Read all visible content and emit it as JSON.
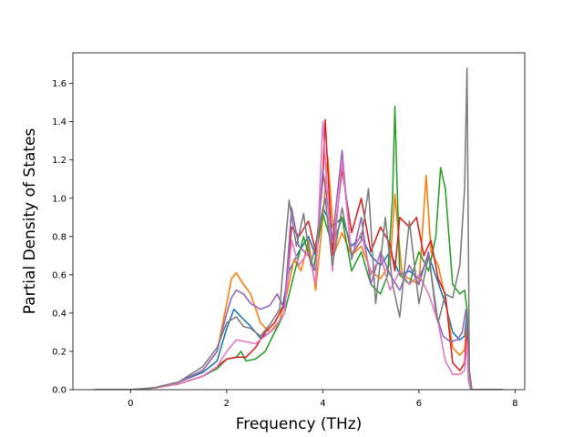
{
  "chart_data": {
    "type": "line",
    "xlabel": "Frequency (THz)",
    "ylabel": "Partial Density of States",
    "xlim": [
      -1.2,
      8.2
    ],
    "ylim": [
      0.0,
      1.76
    ],
    "xticks": [
      0,
      2,
      4,
      6,
      8
    ],
    "yticks": [
      0.0,
      0.2,
      0.4,
      0.6,
      0.8,
      1.0,
      1.2,
      1.4,
      1.6
    ],
    "ytick_labels": [
      "0.0",
      "0.2",
      "0.4",
      "0.6",
      "0.8",
      "1.0",
      "1.2",
      "1.4",
      "1.6"
    ],
    "grid": false,
    "legend": "none",
    "series": [
      {
        "color": "#1f77b4",
        "x": [
          -0.75,
          0.0,
          0.5,
          1.0,
          1.5,
          1.8,
          2.0,
          2.15,
          2.3,
          2.5,
          2.7,
          2.9,
          3.1,
          3.3,
          3.5,
          3.7,
          3.85,
          4.0,
          4.2,
          4.4,
          4.6,
          4.8,
          5.0,
          5.2,
          5.4,
          5.6,
          5.8,
          6.0,
          6.2,
          6.4,
          6.55,
          6.7,
          6.85,
          6.95,
          7.0,
          7.05,
          7.1,
          7.75
        ],
        "y": [
          0.0,
          0.0,
          0.01,
          0.04,
          0.09,
          0.15,
          0.32,
          0.42,
          0.38,
          0.33,
          0.27,
          0.3,
          0.35,
          0.62,
          0.72,
          0.8,
          0.7,
          0.95,
          0.85,
          0.9,
          0.75,
          0.8,
          0.7,
          0.65,
          0.72,
          0.6,
          0.62,
          0.58,
          0.7,
          0.56,
          0.45,
          0.3,
          0.26,
          0.28,
          0.4,
          0.05,
          0.0,
          0.0
        ]
      },
      {
        "color": "#ff7f0e",
        "x": [
          -0.75,
          0.0,
          0.5,
          1.0,
          1.5,
          1.8,
          2.0,
          2.1,
          2.2,
          2.35,
          2.5,
          2.7,
          2.9,
          3.1,
          3.25,
          3.4,
          3.55,
          3.7,
          3.85,
          4.0,
          4.1,
          4.25,
          4.4,
          4.6,
          4.8,
          5.0,
          5.2,
          5.4,
          5.5,
          5.65,
          5.8,
          6.0,
          6.15,
          6.25,
          6.4,
          6.55,
          6.7,
          6.85,
          6.95,
          7.0,
          7.05,
          7.1,
          7.75
        ],
        "y": [
          0.0,
          0.0,
          0.01,
          0.04,
          0.1,
          0.2,
          0.45,
          0.58,
          0.61,
          0.55,
          0.5,
          0.35,
          0.3,
          0.36,
          0.5,
          0.68,
          0.62,
          0.78,
          0.52,
          0.9,
          1.22,
          0.72,
          0.82,
          0.7,
          0.75,
          0.62,
          0.58,
          0.66,
          1.02,
          0.6,
          0.58,
          0.55,
          1.12,
          0.72,
          0.65,
          0.48,
          0.22,
          0.18,
          0.21,
          0.36,
          0.05,
          0.0,
          0.0
        ]
      },
      {
        "color": "#2ca02c",
        "x": [
          -0.75,
          0.0,
          0.5,
          1.0,
          1.5,
          1.8,
          2.0,
          2.2,
          2.3,
          2.4,
          2.6,
          2.8,
          3.0,
          3.2,
          3.4,
          3.6,
          3.8,
          4.0,
          4.2,
          4.4,
          4.6,
          4.8,
          5.0,
          5.2,
          5.35,
          5.45,
          5.5,
          5.6,
          5.8,
          6.0,
          6.2,
          6.35,
          6.45,
          6.55,
          6.7,
          6.85,
          6.95,
          7.0,
          7.05,
          7.1,
          7.75
        ],
        "y": [
          0.0,
          0.0,
          0.01,
          0.03,
          0.07,
          0.11,
          0.16,
          0.17,
          0.2,
          0.15,
          0.16,
          0.2,
          0.3,
          0.4,
          0.6,
          0.8,
          0.62,
          0.92,
          0.75,
          0.9,
          0.62,
          0.72,
          0.55,
          0.5,
          0.6,
          1.0,
          1.48,
          0.6,
          0.55,
          0.72,
          0.62,
          0.8,
          1.16,
          1.05,
          0.55,
          0.5,
          0.52,
          0.42,
          0.05,
          0.0,
          0.0
        ]
      },
      {
        "color": "#d62728",
        "x": [
          -0.75,
          0.0,
          0.5,
          1.0,
          1.5,
          1.8,
          2.0,
          2.2,
          2.4,
          2.6,
          2.8,
          3.0,
          3.2,
          3.35,
          3.5,
          3.7,
          3.85,
          4.0,
          4.05,
          4.2,
          4.4,
          4.6,
          4.8,
          5.0,
          5.2,
          5.4,
          5.5,
          5.6,
          5.8,
          5.95,
          6.1,
          6.25,
          6.4,
          6.55,
          6.7,
          6.85,
          6.95,
          7.0,
          7.05,
          7.1,
          7.75
        ],
        "y": [
          0.0,
          0.0,
          0.01,
          0.03,
          0.07,
          0.12,
          0.16,
          0.17,
          0.17,
          0.22,
          0.3,
          0.35,
          0.45,
          0.85,
          0.8,
          0.88,
          0.72,
          1.1,
          1.41,
          0.7,
          1.15,
          0.82,
          1.0,
          0.72,
          0.85,
          0.76,
          0.62,
          0.9,
          0.85,
          0.9,
          0.7,
          0.78,
          0.58,
          0.5,
          0.14,
          0.1,
          0.14,
          0.32,
          0.05,
          0.0,
          0.0
        ]
      },
      {
        "color": "#9467bd",
        "x": [
          -0.75,
          0.0,
          0.5,
          1.0,
          1.5,
          1.8,
          2.0,
          2.1,
          2.2,
          2.35,
          2.5,
          2.7,
          2.9,
          3.05,
          3.2,
          3.35,
          3.5,
          3.7,
          3.85,
          4.0,
          4.2,
          4.4,
          4.6,
          4.8,
          5.0,
          5.2,
          5.4,
          5.6,
          5.8,
          6.0,
          6.2,
          6.35,
          6.5,
          6.65,
          6.8,
          6.9,
          6.98,
          7.03,
          7.08,
          7.75
        ],
        "y": [
          0.0,
          0.0,
          0.01,
          0.04,
          0.1,
          0.2,
          0.4,
          0.48,
          0.52,
          0.5,
          0.45,
          0.42,
          0.44,
          0.5,
          0.42,
          0.95,
          0.75,
          0.7,
          0.62,
          1.15,
          0.78,
          1.25,
          0.68,
          0.9,
          0.55,
          0.72,
          0.6,
          0.52,
          0.65,
          0.55,
          0.72,
          0.4,
          0.28,
          0.25,
          0.26,
          0.3,
          0.42,
          0.05,
          0.0,
          0.0
        ]
      },
      {
        "color": "#e377c2",
        "x": [
          -0.75,
          0.0,
          0.5,
          1.0,
          1.5,
          1.8,
          2.0,
          2.2,
          2.4,
          2.6,
          2.8,
          3.0,
          3.2,
          3.35,
          3.5,
          3.7,
          3.85,
          4.0,
          4.2,
          4.4,
          4.6,
          4.8,
          5.0,
          5.2,
          5.4,
          5.6,
          5.8,
          6.0,
          6.2,
          6.4,
          6.55,
          6.7,
          6.85,
          6.95,
          7.0,
          7.05,
          7.1,
          7.75
        ],
        "y": [
          0.0,
          0.0,
          0.01,
          0.03,
          0.07,
          0.12,
          0.2,
          0.26,
          0.25,
          0.24,
          0.28,
          0.32,
          0.4,
          0.78,
          0.65,
          0.72,
          0.55,
          1.4,
          0.62,
          1.2,
          0.7,
          0.82,
          0.6,
          0.7,
          0.52,
          0.62,
          0.55,
          0.6,
          0.5,
          0.35,
          0.15,
          0.08,
          0.08,
          0.1,
          0.25,
          0.04,
          0.0,
          0.0
        ]
      },
      {
        "color": "#7f7f7f",
        "x": [
          -0.75,
          0.0,
          0.5,
          1.0,
          1.5,
          1.8,
          2.0,
          2.2,
          2.35,
          2.5,
          2.7,
          2.9,
          3.1,
          3.3,
          3.45,
          3.6,
          3.75,
          3.9,
          4.05,
          4.2,
          4.4,
          4.6,
          4.8,
          4.95,
          5.1,
          5.3,
          5.45,
          5.6,
          5.8,
          6.0,
          6.2,
          6.4,
          6.55,
          6.7,
          6.85,
          6.95,
          7.0,
          7.05,
          7.1,
          7.75
        ],
        "y": [
          0.0,
          0.0,
          0.01,
          0.04,
          0.12,
          0.22,
          0.35,
          0.38,
          0.33,
          0.32,
          0.28,
          0.34,
          0.42,
          0.99,
          0.75,
          0.92,
          0.65,
          0.82,
          1.0,
          0.65,
          0.95,
          0.7,
          0.78,
          1.05,
          0.45,
          0.9,
          0.55,
          0.38,
          0.88,
          0.45,
          0.7,
          0.35,
          0.5,
          0.48,
          0.65,
          1.05,
          1.68,
          0.1,
          0.0,
          0.0
        ]
      }
    ]
  }
}
